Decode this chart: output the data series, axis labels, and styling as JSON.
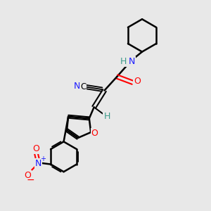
{
  "background_color": "#e8e8e8",
  "atom_colors": {
    "C": "#000000",
    "H": "#3d9b8a",
    "N": "#1a1aff",
    "O": "#ff0000"
  },
  "bond_color": "#000000",
  "figsize": [
    3.0,
    3.0
  ],
  "dpi": 100
}
